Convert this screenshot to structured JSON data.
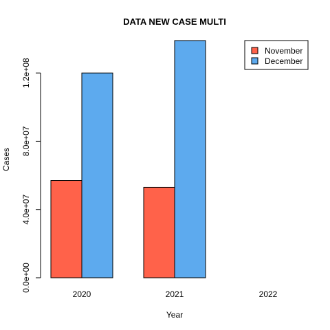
{
  "chart_data": {
    "type": "bar",
    "title": "DATA NEW CASE MULTI",
    "xlabel": "Year",
    "ylabel": "Cases",
    "categories": [
      "2020",
      "2021",
      "2022"
    ],
    "series": [
      {
        "name": "November",
        "color": "#FF624A",
        "values": [
          57000000,
          53000000,
          0
        ]
      },
      {
        "name": "December",
        "color": "#5DAAEE",
        "values": [
          120000000,
          139000000,
          0
        ]
      }
    ],
    "ylim": [
      0,
      139000000
    ],
    "y_ticks": [
      0,
      40000000,
      80000000,
      120000000
    ],
    "y_tick_labels": [
      "0.0e+00",
      "4.0e+07",
      "8.0e+07",
      "1.2e+08"
    ],
    "legend_position": "top-right",
    "grid": false
  }
}
